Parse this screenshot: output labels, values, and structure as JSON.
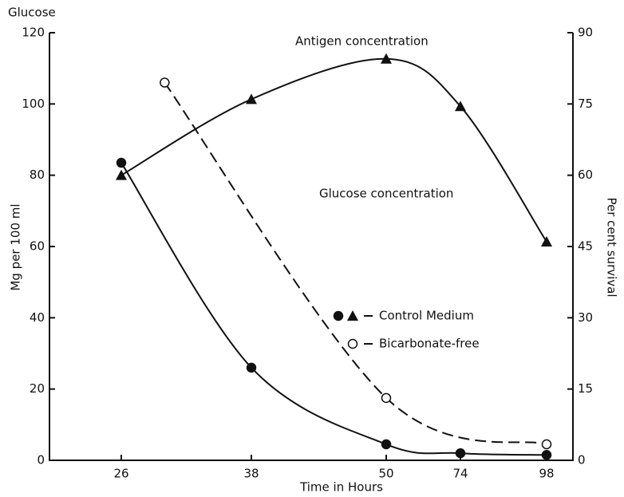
{
  "chart_data": {
    "type": "line",
    "y_title": "Glucose",
    "ylabel": "Mg per 100 ml",
    "y2label": "Per cent survival",
    "xlabel": "Time in Hours",
    "annotations": [
      "Glucose concentration"
    ],
    "x": [
      26,
      38,
      50,
      74,
      98
    ],
    "xticks": [
      26,
      38,
      50,
      74,
      98
    ],
    "ylim": [
      0,
      120
    ],
    "yticks": [
      0,
      20,
      40,
      60,
      80,
      100,
      120
    ],
    "y2lim": [
      0,
      90
    ],
    "y2ticks": [
      0,
      15,
      30,
      45,
      60,
      75,
      90
    ],
    "series": [
      {
        "name": "Control Medium",
        "color": "#111111",
        "marker": "circle",
        "dash": false,
        "values": [
          83.5,
          26,
          4.5,
          2,
          1.5
        ]
      },
      {
        "name": "Bicarbonate-free",
        "color": "#111111",
        "marker": "open-circle",
        "dash": true,
        "x": [
          30,
          50,
          98
        ],
        "values": [
          106,
          17.5,
          4.5
        ]
      },
      {
        "name": "Antigen concentration",
        "color": "#111111",
        "marker": "triangle",
        "dash": false,
        "axis": "y2",
        "values": [
          60,
          76,
          84.5,
          74.5,
          46
        ]
      }
    ]
  }
}
